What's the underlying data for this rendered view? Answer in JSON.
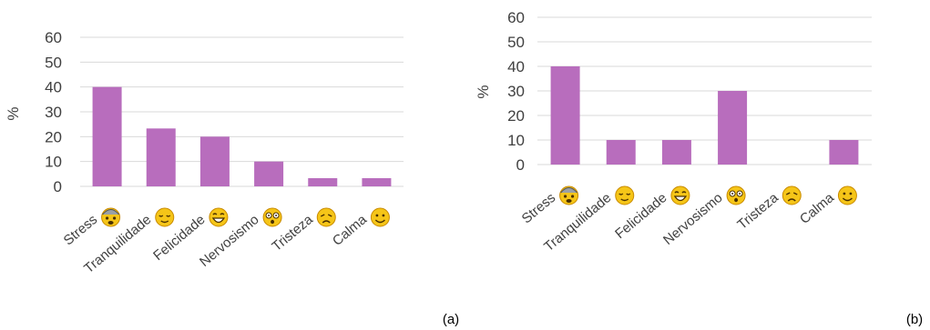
{
  "chart_data": [
    {
      "type": "bar",
      "panel_label": "(a)",
      "ylabel": "%",
      "ylim": [
        0,
        60
      ],
      "yticks": [
        "0",
        "10",
        "20",
        "30",
        "40",
        "50",
        "60"
      ],
      "grid": true,
      "bar_color": "#b86dbd",
      "categories": [
        "Stress",
        "Tranquilidade",
        "Felicidade",
        "Nervosismo",
        "Tristeza",
        "Calma"
      ],
      "category_icons": [
        "hot-stressed-face-icon",
        "relieved-face-icon",
        "grinning-face-icon",
        "dizzy-face-icon",
        "sad-face-icon",
        "smiling-face-icon"
      ],
      "values": [
        40,
        23.3,
        20,
        10,
        3.3,
        3.3
      ]
    },
    {
      "type": "bar",
      "panel_label": "(b)",
      "ylabel": "%",
      "ylim": [
        0,
        60
      ],
      "yticks": [
        "0",
        "10",
        "20",
        "30",
        "40",
        "50",
        "60"
      ],
      "grid": true,
      "bar_color": "#b86dbd",
      "categories": [
        "Stress",
        "Tranquilidade",
        "Felicidade",
        "Nervosismo",
        "Tristeza",
        "Calma"
      ],
      "category_icons": [
        "hot-stressed-face-icon",
        "relieved-face-icon",
        "grinning-face-icon",
        "dizzy-face-icon",
        "sad-face-icon",
        "smiling-face-icon"
      ],
      "values": [
        40,
        10,
        10,
        30,
        0,
        10
      ]
    }
  ]
}
